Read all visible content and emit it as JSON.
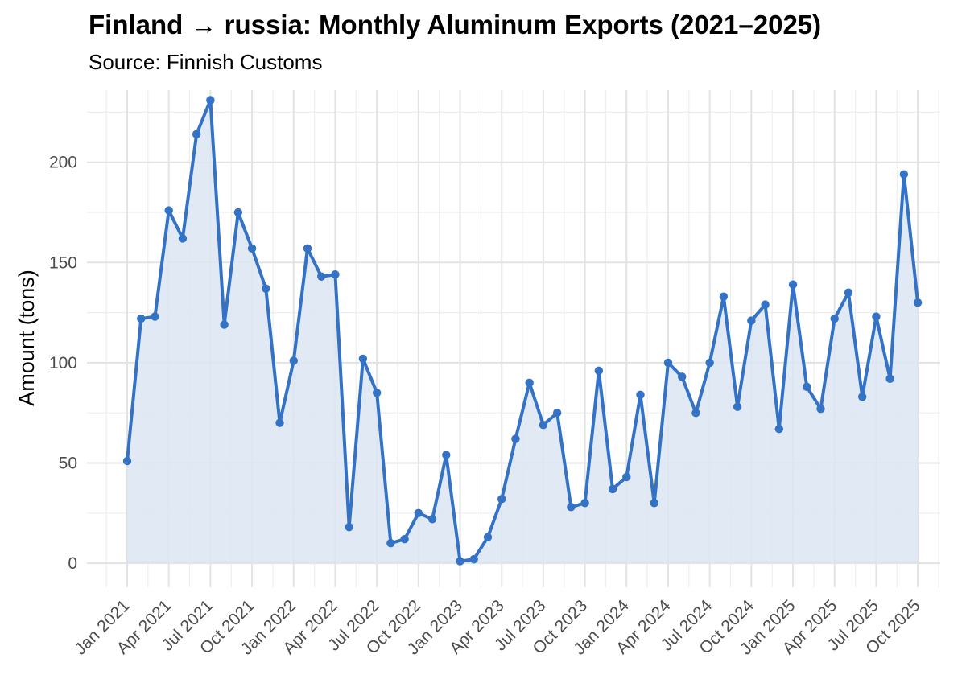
{
  "chart_data": {
    "type": "area",
    "title": "Finland → russia: Monthly Aluminum Exports (2021–2025)",
    "subtitle": "Source: Finnish Customs",
    "xlabel": "",
    "ylabel": "Amount (tons)",
    "ylim": [
      -12,
      236
    ],
    "y_ticks": [
      0,
      50,
      100,
      150,
      200
    ],
    "x_ticks": [
      "Jan 2021",
      "Apr 2021",
      "Jul 2021",
      "Oct 2021",
      "Jan 2022",
      "Apr 2022",
      "Jul 2022",
      "Oct 2022",
      "Jan 2023",
      "Apr 2023",
      "Jul 2023",
      "Oct 2023",
      "Jan 2024",
      "Apr 2024",
      "Jul 2024",
      "Oct 2024",
      "Jan 2025",
      "Apr 2025",
      "Jul 2025",
      "Oct 2025"
    ],
    "grid": true,
    "legend": "none",
    "line_color": "#3372C4",
    "fill_color": "#DCE6F2",
    "series": [
      {
        "x": [
          "2021-01",
          "2021-02",
          "2021-03",
          "2021-04",
          "2021-05",
          "2021-06",
          "2021-07",
          "2021-08",
          "2021-09",
          "2021-10",
          "2021-11",
          "2021-12",
          "2022-01",
          "2022-02",
          "2022-03",
          "2022-04",
          "2022-05",
          "2022-06",
          "2022-07",
          "2022-08",
          "2022-09",
          "2022-10",
          "2022-11",
          "2022-12",
          "2023-01",
          "2023-02",
          "2023-03",
          "2023-04",
          "2023-05",
          "2023-06",
          "2023-07",
          "2023-08",
          "2023-09",
          "2023-10",
          "2023-11",
          "2023-12",
          "2024-01",
          "2024-02",
          "2024-03",
          "2024-04",
          "2024-05",
          "2024-06",
          "2024-07",
          "2024-08",
          "2024-09",
          "2024-10",
          "2024-11",
          "2024-12",
          "2025-01",
          "2025-02",
          "2025-03",
          "2025-04",
          "2025-05",
          "2025-06",
          "2025-07",
          "2025-08",
          "2025-09",
          "2025-10"
        ],
        "values": [
          51,
          122,
          123,
          176,
          162,
          214,
          231,
          119,
          175,
          157,
          137,
          70,
          101,
          157,
          143,
          144,
          18,
          102,
          85,
          10,
          12,
          25,
          22,
          54,
          1,
          2,
          13,
          32,
          62,
          90,
          69,
          75,
          28,
          30,
          96,
          37,
          43,
          84,
          30,
          100,
          93,
          75,
          100,
          133,
          78,
          121,
          129,
          67,
          139,
          88,
          77,
          122,
          135,
          83,
          123,
          92,
          194,
          130
        ]
      }
    ]
  }
}
